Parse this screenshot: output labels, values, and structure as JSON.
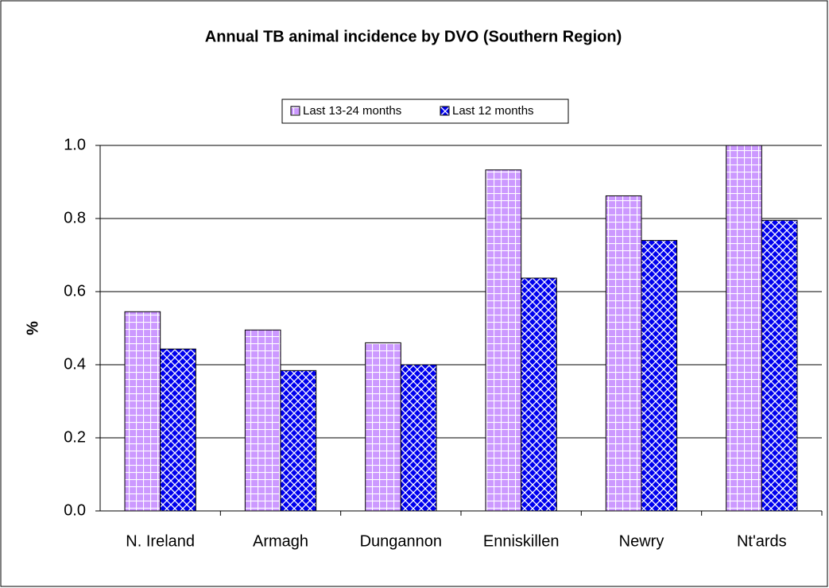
{
  "chart_data": {
    "type": "bar",
    "title": "Annual TB animal incidence by DVO (Southern Region)",
    "y_label": "%",
    "categories": [
      "N. Ireland",
      "Armagh",
      "Dungannon",
      "Enniskillen",
      "Newry",
      "Nt'ards"
    ],
    "series": [
      {
        "name": "Last 13-24 months",
        "color": "#cc99ff",
        "values": [
          0.545,
          0.495,
          0.46,
          0.933,
          0.862,
          1.0
        ]
      },
      {
        "name": "Last 12 months",
        "color": "#0000ee",
        "values": [
          0.443,
          0.384,
          0.4,
          0.637,
          0.74,
          0.795
        ]
      }
    ],
    "ylim": [
      0,
      1
    ],
    "yticks": [
      {
        "value": 0,
        "label": "0.0"
      },
      0.2,
      0.4,
      0.6,
      0.8,
      {
        "value": 1,
        "label": "1.0"
      }
    ],
    "grid": true
  }
}
